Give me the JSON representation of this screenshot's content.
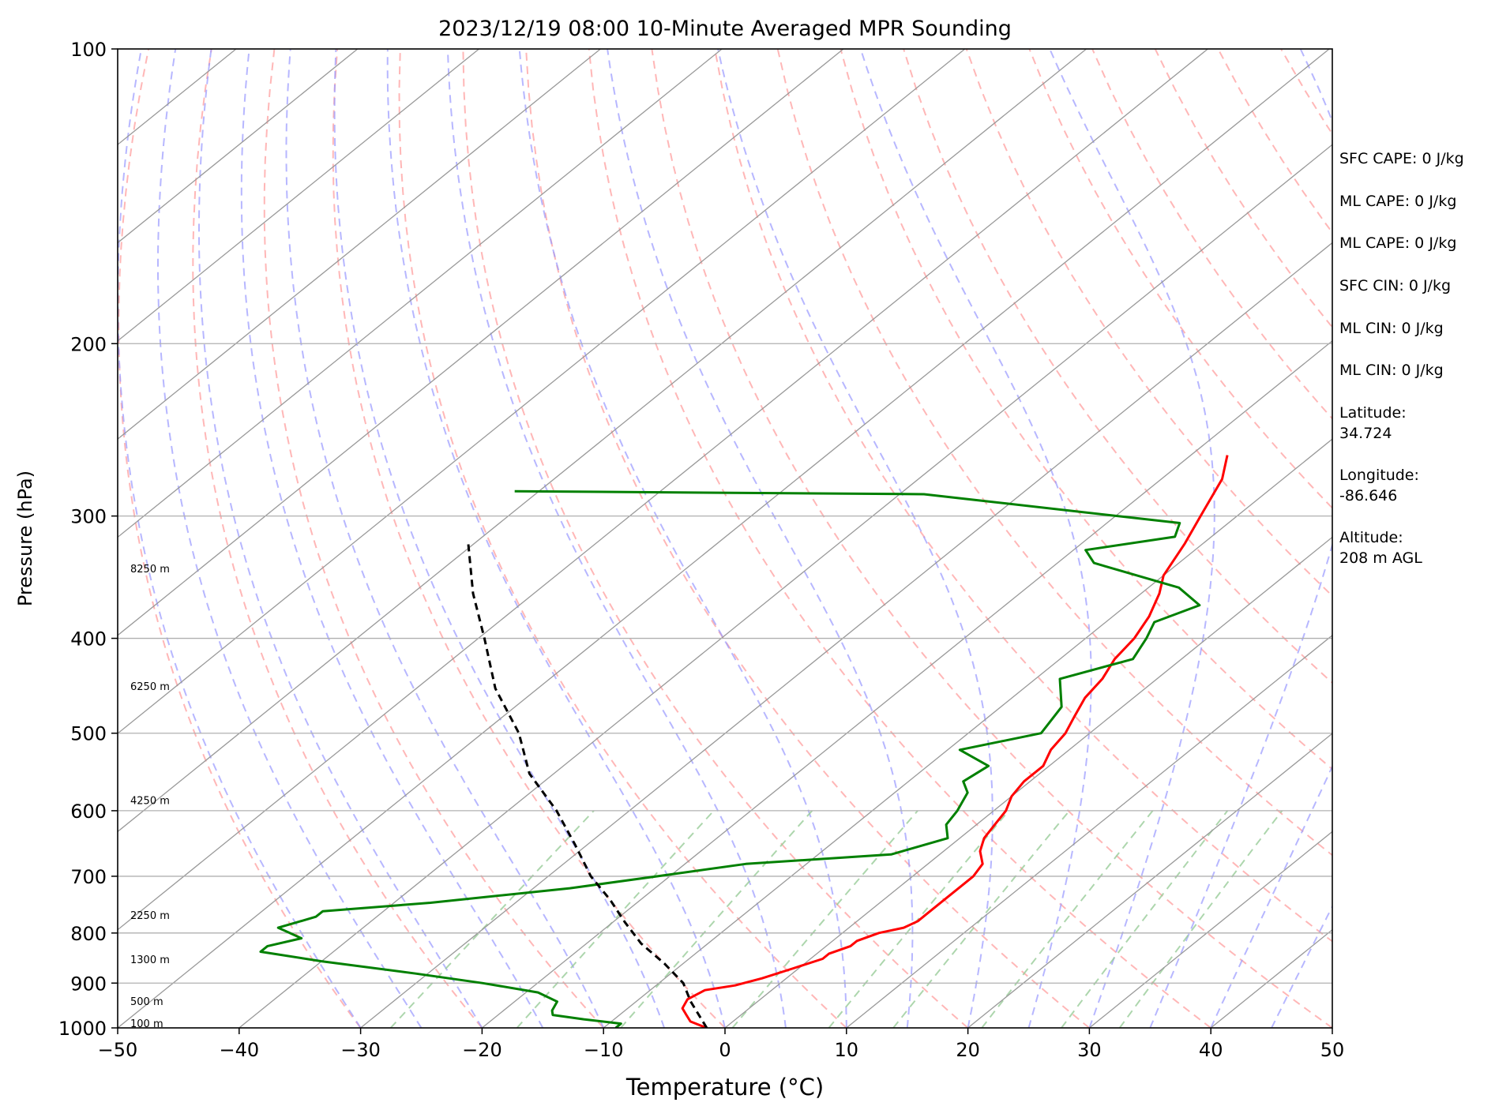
{
  "chart_data": {
    "type": "line",
    "title": "2023/12/19 08:00 10-Minute Averaged MPR Sounding",
    "xlabel": "Temperature (°C)",
    "ylabel": "Pressure (hPa)",
    "xlim": [
      -50,
      50
    ],
    "ylim": [
      1000,
      100
    ],
    "yscale": "log",
    "skew": "skew-T",
    "grid": true,
    "x_ticks": [
      -50,
      -40,
      -30,
      -20,
      -10,
      0,
      10,
      20,
      30,
      40,
      50
    ],
    "x_tick_labels": [
      "−50",
      "−40",
      "−30",
      "−20",
      "−10",
      "0",
      "10",
      "20",
      "30",
      "40",
      "50"
    ],
    "y_ticks": [
      1000,
      900,
      800,
      700,
      600,
      500,
      400,
      300,
      200,
      100
    ],
    "y_tick_labels": [
      "1000",
      "900",
      "800",
      "700",
      "600",
      "500",
      "400",
      "300",
      "200",
      "100"
    ],
    "series": [
      {
        "role": "temperature",
        "color": "#ff0000",
        "points": [
          [
            1000,
            -1.5
          ],
          [
            985,
            -3.5
          ],
          [
            970,
            -4.5
          ],
          [
            955,
            -5.5
          ],
          [
            935,
            -6.0
          ],
          [
            915,
            -5.5
          ],
          [
            905,
            -3.5
          ],
          [
            890,
            -2.0
          ],
          [
            870,
            -0.5
          ],
          [
            850,
            1.0
          ],
          [
            840,
            1.0
          ],
          [
            825,
            2.0
          ],
          [
            815,
            2.0
          ],
          [
            800,
            3.0
          ],
          [
            790,
            4.5
          ],
          [
            778,
            5.0
          ],
          [
            765,
            5.0
          ],
          [
            740,
            5.0
          ],
          [
            720,
            5.0
          ],
          [
            700,
            5.0
          ],
          [
            680,
            4.5
          ],
          [
            660,
            3.0
          ],
          [
            640,
            2.0
          ],
          [
            620,
            1.5
          ],
          [
            600,
            1.0
          ],
          [
            580,
            0.0
          ],
          [
            560,
            -0.5
          ],
          [
            540,
            -0.5
          ],
          [
            520,
            -1.5
          ],
          [
            500,
            -2.0
          ],
          [
            480,
            -3.0
          ],
          [
            460,
            -4.0
          ],
          [
            440,
            -4.5
          ],
          [
            420,
            -5.5
          ],
          [
            400,
            -6.0
          ],
          [
            380,
            -7.0
          ],
          [
            360,
            -8.5
          ],
          [
            345,
            -10.0
          ],
          [
            320,
            -11.5
          ],
          [
            300,
            -13.0
          ],
          [
            275,
            -15.0
          ],
          [
            260,
            -17.0
          ]
        ]
      },
      {
        "role": "dewpoint",
        "color": "#008000",
        "points": [
          [
            1000,
            -9.0
          ],
          [
            990,
            -9.0
          ],
          [
            980,
            -12.5
          ],
          [
            970,
            -15.5
          ],
          [
            960,
            -16.0
          ],
          [
            940,
            -16.5
          ],
          [
            920,
            -19.0
          ],
          [
            900,
            -24.5
          ],
          [
            880,
            -31.0
          ],
          [
            855,
            -40.0
          ],
          [
            836,
            -46.0
          ],
          [
            825,
            -46.0
          ],
          [
            810,
            -44.0
          ],
          [
            800,
            -45.5
          ],
          [
            790,
            -47.0
          ],
          [
            780,
            -46.0
          ],
          [
            770,
            -45.0
          ],
          [
            760,
            -45.0
          ],
          [
            745,
            -37.0
          ],
          [
            720,
            -27.0
          ],
          [
            700,
            -21.0
          ],
          [
            680,
            -15.0
          ],
          [
            665,
            -4.0
          ],
          [
            640,
            -1.0
          ],
          [
            620,
            -2.5
          ],
          [
            600,
            -3.0
          ],
          [
            575,
            -4.0
          ],
          [
            560,
            -5.5
          ],
          [
            540,
            -5.0
          ],
          [
            520,
            -9.0
          ],
          [
            500,
            -4.0
          ],
          [
            470,
            -5.0
          ],
          [
            440,
            -8.0
          ],
          [
            420,
            -4.0
          ],
          [
            400,
            -5.0
          ],
          [
            385,
            -6.0
          ],
          [
            370,
            -4.0
          ],
          [
            355,
            -7.5
          ],
          [
            335,
            -17.0
          ],
          [
            325,
            -19.0
          ],
          [
            315,
            -13.0
          ],
          [
            305,
            -14.0
          ],
          [
            285,
            -38.0
          ],
          [
            283,
            -72.0
          ]
        ]
      },
      {
        "role": "parcel",
        "color": "#000000",
        "style": "dashed",
        "points": [
          [
            1000,
            -1.5
          ],
          [
            940,
            -5.5
          ],
          [
            900,
            -8.0
          ],
          [
            860,
            -11.5
          ],
          [
            820,
            -15.5
          ],
          [
            780,
            -19.0
          ],
          [
            740,
            -22.5
          ],
          [
            700,
            -26.5
          ],
          [
            650,
            -31.0
          ],
          [
            600,
            -36.0
          ],
          [
            550,
            -42.0
          ],
          [
            500,
            -47.0
          ],
          [
            450,
            -53.5
          ],
          [
            400,
            -59.5
          ],
          [
            360,
            -65.0
          ],
          [
            320,
            -70.5
          ]
        ]
      }
    ],
    "height_labels": [
      {
        "pressure": 1000,
        "text": "100 m"
      },
      {
        "pressure": 955,
        "text": "500 m"
      },
      {
        "pressure": 865,
        "text": "1300 m"
      },
      {
        "pressure": 780,
        "text": "2250 m"
      },
      {
        "pressure": 595,
        "text": "4250 m"
      },
      {
        "pressure": 455,
        "text": "6250 m"
      },
      {
        "pressure": 345,
        "text": "8250 m"
      }
    ],
    "reference_lines": {
      "dry_adiabats_color": "#ff9999",
      "moist_adiabats_color": "#9999ff",
      "mixing_ratio_color": "#99cc99",
      "isotherm_color": "#999999"
    }
  },
  "stats": [
    {
      "text": "SFC CAPE: 0 J/kg"
    },
    {
      "text": "ML CAPE: 0 J/kg"
    },
    {
      "text": "ML CAPE: 0 J/kg"
    },
    {
      "text": "SFC CIN: 0 J/kg"
    },
    {
      "text": "ML CIN: 0 J/kg"
    },
    {
      "text": "ML CIN: 0 J/kg"
    },
    {
      "text": "Latitude:\n34.724"
    },
    {
      "text": "Longitude:\n-86.646"
    },
    {
      "text": "Altitude:\n208 m AGL"
    }
  ]
}
